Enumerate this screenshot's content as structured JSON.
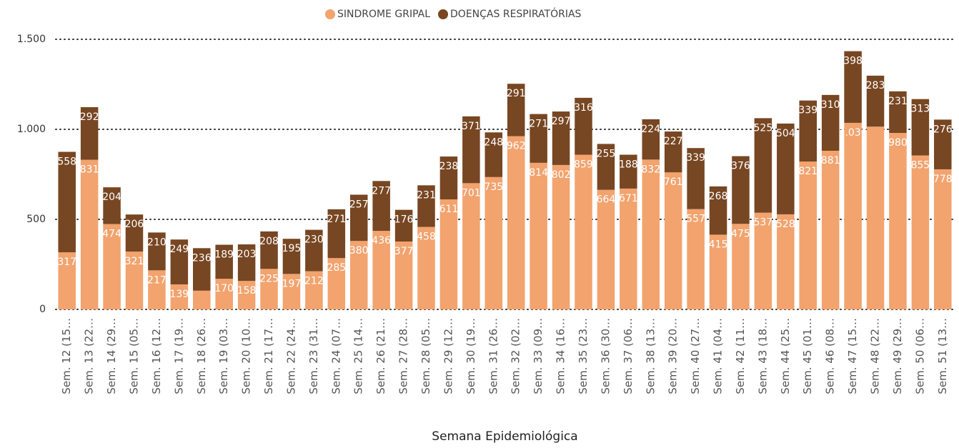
{
  "chart_data": {
    "type": "stacked_bar",
    "x_label": "Semana Epidemiológica",
    "legend": "top",
    "grid": true,
    "categories": [
      "Sem. 12 (15…",
      "Sem. 13 (22…",
      "Sem. 14 (29…",
      "Sem. 15 (05…",
      "Sem. 16 (12…",
      "Sem. 17 (19…",
      "Sem. 18 (26…",
      "Sem. 19 (03…",
      "Sem. 20 (10…",
      "Sem. 21 (17…",
      "Sem. 22 (24…",
      "Sem. 23 (31…",
      "Sem. 24 (07…",
      "Sem. 25 (14…",
      "Sem. 26 (21…",
      "Sem. 27 (28…",
      "Sem. 28 (05…",
      "Sem. 29 (12…",
      "Sem. 30 (19…",
      "Sem. 31 (26…",
      "Sem. 32 (02…",
      "Sem. 33 (09…",
      "Sem. 34 (16…",
      "Sem. 35 (23…",
      "Sem. 36 (30…",
      "Sem. 37 (06…",
      "Sem. 38 (13…",
      "Sem. 39 (20…",
      "Sem. 40 (27…",
      "Sem. 41 (04…",
      "Sem. 42 (11…",
      "Sem. 43 (18…",
      "Sem. 44 (25…",
      "Sem. 45 (01…",
      "Sem. 46 (08…",
      "Sem. 47 (15…",
      "Sem. 48 (22…",
      "Sem. 49 (29…",
      "Sem. 50 (06…",
      "Sem. 51 (13…"
    ],
    "series": [
      {
        "name": "SINDROME GRIPAL",
        "color": "#f2a36e",
        "values": [
          317,
          831,
          474,
          321,
          217,
          139,
          104,
          170,
          158,
          225,
          197,
          212,
          285,
          380,
          436,
          377,
          458,
          611,
          701,
          735,
          962,
          814,
          802,
          859,
          664,
          671,
          832,
          761,
          557,
          415,
          475,
          537,
          528,
          821,
          881,
          1036,
          1015,
          980,
          855,
          778
        ],
        "value_labels": [
          "317",
          "831",
          "474",
          "321",
          "217",
          "139",
          null,
          "170",
          "158",
          "225",
          "197",
          "212",
          "285",
          "380",
          "436",
          "377",
          "458",
          "611",
          "701",
          "735",
          "962",
          "814",
          "802",
          "859",
          "664",
          "671",
          "832",
          "761",
          "557",
          "415",
          "475",
          "537",
          "528",
          "821",
          "881",
          "1.036",
          null,
          "980",
          "855",
          "778"
        ]
      },
      {
        "name": "DOENÇAS RESPIRATÓRIAS",
        "color": "#774622",
        "values": [
          558,
          292,
          204,
          206,
          210,
          249,
          236,
          189,
          203,
          208,
          195,
          230,
          271,
          257,
          277,
          176,
          231,
          238,
          371,
          248,
          291,
          271,
          297,
          316,
          255,
          188,
          224,
          227,
          339,
          268,
          376,
          525,
          504,
          339,
          310,
          398,
          283,
          231,
          313,
          276
        ]
      }
    ],
    "ylim": [
      0,
      1500
    ],
    "yticks": [
      0,
      500,
      {
        "value": 1000,
        "label": "1.000"
      },
      {
        "value": 1500,
        "label": "1.500"
      }
    ]
  }
}
